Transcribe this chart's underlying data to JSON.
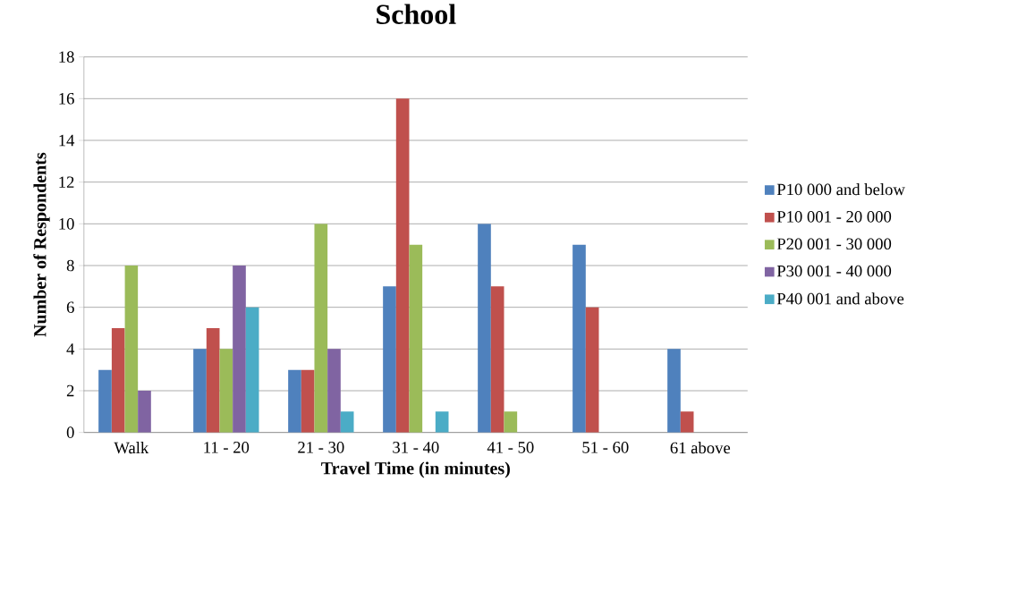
{
  "chart_data": {
    "type": "bar",
    "title": "School",
    "xlabel": "Travel Time (in minutes)",
    "ylabel": "Number of Respondents",
    "categories": [
      "Walk",
      "11 - 20",
      "21 - 30",
      "31 - 40",
      "41 - 50",
      "51 - 60",
      "61 above"
    ],
    "series": [
      {
        "name": "P10 000 and below",
        "color": "#4f81bd",
        "values": [
          3,
          4,
          3,
          7,
          10,
          9,
          4
        ]
      },
      {
        "name": "P10 001 - 20 000",
        "color": "#c0504d",
        "values": [
          5,
          5,
          3,
          16,
          7,
          6,
          1
        ]
      },
      {
        "name": "P20 001 - 30 000",
        "color": "#9bbb59",
        "values": [
          8,
          4,
          10,
          9,
          1,
          0,
          0
        ]
      },
      {
        "name": "P30 001 - 40 000",
        "color": "#8064a2",
        "values": [
          2,
          8,
          4,
          0,
          0,
          0,
          0
        ]
      },
      {
        "name": "P40 001 and above",
        "color": "#4bacc6",
        "values": [
          0,
          6,
          1,
          1,
          0,
          0,
          0
        ]
      }
    ],
    "ylim": [
      0,
      18
    ],
    "yticks": [
      0,
      2,
      4,
      6,
      8,
      10,
      12,
      14,
      16,
      18
    ],
    "grid": "y",
    "legend": "right"
  }
}
